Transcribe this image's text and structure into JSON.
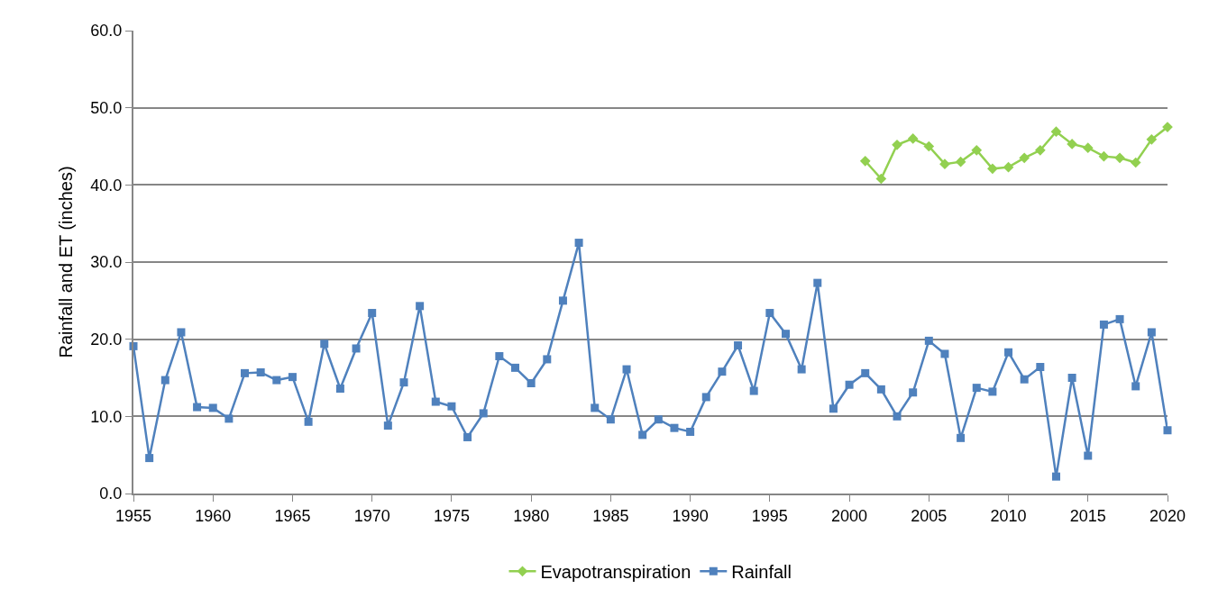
{
  "chart_data": {
    "type": "line",
    "ylabel": "Rainfall and ET (inches)",
    "xlim": [
      1955,
      2020
    ],
    "xticks": [
      1955,
      1960,
      1965,
      1970,
      1975,
      1980,
      1985,
      1990,
      1995,
      2000,
      2005,
      2010,
      2015,
      2020
    ],
    "ylim": [
      0,
      60
    ],
    "yticks": [
      {
        "value": 0,
        "label": "0.0"
      },
      {
        "value": 10,
        "label": "10.0"
      },
      {
        "value": 20,
        "label": "20.0"
      },
      {
        "value": 30,
        "label": "30.0"
      },
      {
        "value": 40,
        "label": "40.0"
      },
      {
        "value": 50,
        "label": "50.0"
      },
      {
        "value": 60,
        "label": "60.0"
      }
    ],
    "grid": "y",
    "legend": "bottom",
    "series": [
      {
        "name": "Evapotranspiration",
        "color": "#92d050",
        "marker": "diamond",
        "x": [
          2001,
          2002,
          2003,
          2004,
          2005,
          2006,
          2007,
          2008,
          2009,
          2010,
          2011,
          2012,
          2013,
          2014,
          2015,
          2016,
          2017,
          2018,
          2019,
          2020
        ],
        "values": [
          43.1,
          40.8,
          45.2,
          46.0,
          45.0,
          42.7,
          43.0,
          44.5,
          42.1,
          42.3,
          43.5,
          44.5,
          46.9,
          45.3,
          44.8,
          43.7,
          43.5,
          42.9,
          45.9,
          47.5
        ]
      },
      {
        "name": "Rainfall",
        "color": "#4f81bd",
        "marker": "square",
        "x": [
          1955,
          1956,
          1957,
          1958,
          1959,
          1960,
          1961,
          1962,
          1963,
          1964,
          1965,
          1966,
          1967,
          1968,
          1969,
          1970,
          1971,
          1972,
          1973,
          1974,
          1975,
          1976,
          1977,
          1978,
          1979,
          1980,
          1981,
          1982,
          1983,
          1984,
          1985,
          1986,
          1987,
          1988,
          1989,
          1990,
          1991,
          1992,
          1993,
          1994,
          1995,
          1996,
          1997,
          1998,
          1999,
          2000,
          2001,
          2002,
          2003,
          2004,
          2005,
          2006,
          2007,
          2008,
          2009,
          2010,
          2011,
          2012,
          2013,
          2014,
          2015,
          2016,
          2017,
          2018,
          2019,
          2020
        ],
        "values": [
          19.1,
          4.6,
          14.7,
          20.9,
          11.2,
          11.1,
          9.7,
          15.6,
          15.7,
          14.7,
          15.1,
          9.3,
          19.4,
          13.6,
          18.8,
          23.4,
          8.8,
          14.4,
          24.3,
          11.9,
          11.3,
          7.3,
          10.4,
          17.8,
          16.3,
          14.3,
          17.4,
          25.0,
          32.5,
          11.1,
          9.6,
          16.1,
          7.6,
          9.6,
          8.5,
          8.0,
          12.5,
          15.8,
          19.2,
          13.3,
          23.4,
          20.7,
          16.1,
          27.3,
          11.0,
          14.1,
          15.6,
          13.5,
          10.0,
          13.1,
          19.8,
          18.1,
          7.2,
          13.7,
          13.2,
          18.3,
          14.8,
          16.4,
          2.2,
          15.0,
          4.9,
          21.9,
          22.6,
          13.9,
          20.9,
          8.2
        ]
      }
    ]
  }
}
